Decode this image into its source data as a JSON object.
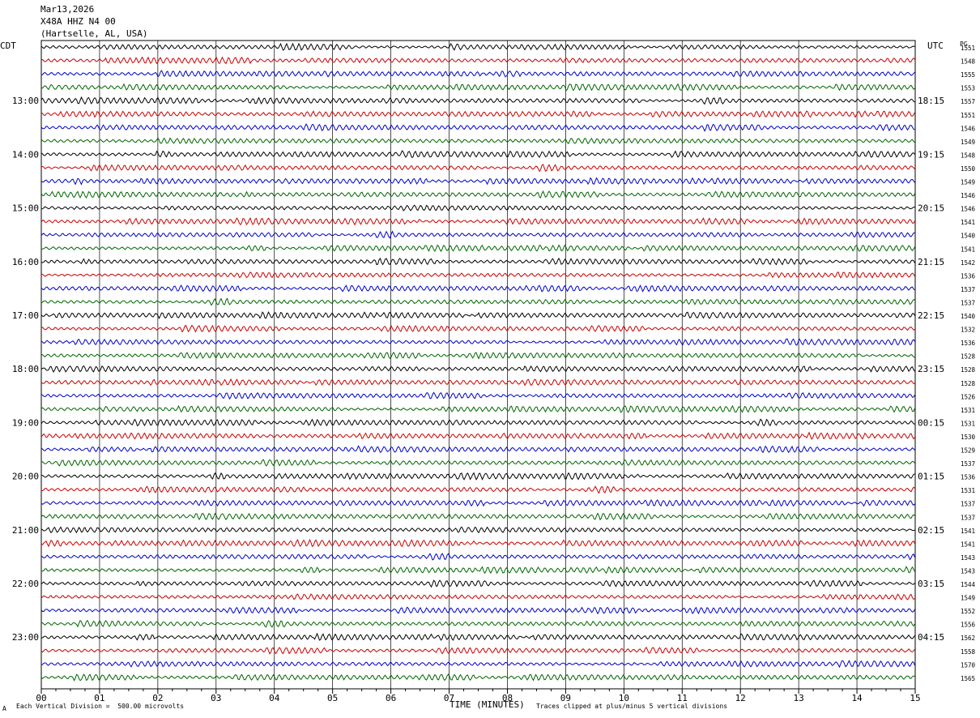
{
  "header": {
    "date": "Mar13,2026",
    "station": "X48A HHZ N4 00",
    "location": "(Hartselle, AL, USA)"
  },
  "left_tz": "CDT",
  "right_tz": "UTC",
  "right_col_header": "PG",
  "left_hours": [
    "13:00",
    "14:00",
    "15:00",
    "16:00",
    "17:00",
    "18:00",
    "19:00",
    "20:00",
    "21:00",
    "22:00",
    "23:00"
  ],
  "right_hours": [
    "18:15",
    "19:15",
    "20:15",
    "21:15",
    "22:15",
    "23:15",
    "00:15",
    "01:15",
    "02:15",
    "03:15",
    "04:15"
  ],
  "x_ticks": [
    "00",
    "01",
    "02",
    "03",
    "04",
    "05",
    "06",
    "07",
    "08",
    "09",
    "10",
    "11",
    "12",
    "13",
    "14",
    "15"
  ],
  "xlabel": "TIME (MINUTES)",
  "footer_left": "Each Vertical Division =  500.00 microvolts",
  "footer_right": "Traces clipped at plus/minus 5 vertical divisions",
  "footer_mark": "A",
  "trace_colors": [
    "#000000",
    "#cc0000",
    "#0000cc",
    "#006600"
  ],
  "chart_data": {
    "type": "line",
    "xlabel": "TIME (MINUTES)",
    "xlim": [
      0,
      15
    ],
    "trace_count": 48,
    "pg_values": [
      1551,
      1548,
      1555,
      1553,
      1557,
      1551,
      1546,
      1549,
      1548,
      1550,
      1549,
      1546,
      1546,
      1541,
      1540,
      1541,
      1542,
      1536,
      1537,
      1537,
      1540,
      1532,
      1536,
      1528,
      1528,
      1528,
      1526,
      1531,
      1531,
      1530,
      1529,
      1537,
      1536,
      1531,
      1537,
      1537,
      1541,
      1541,
      1543,
      1543,
      1544,
      1549,
      1552,
      1556,
      1562,
      1558,
      1570,
      1565
    ]
  }
}
